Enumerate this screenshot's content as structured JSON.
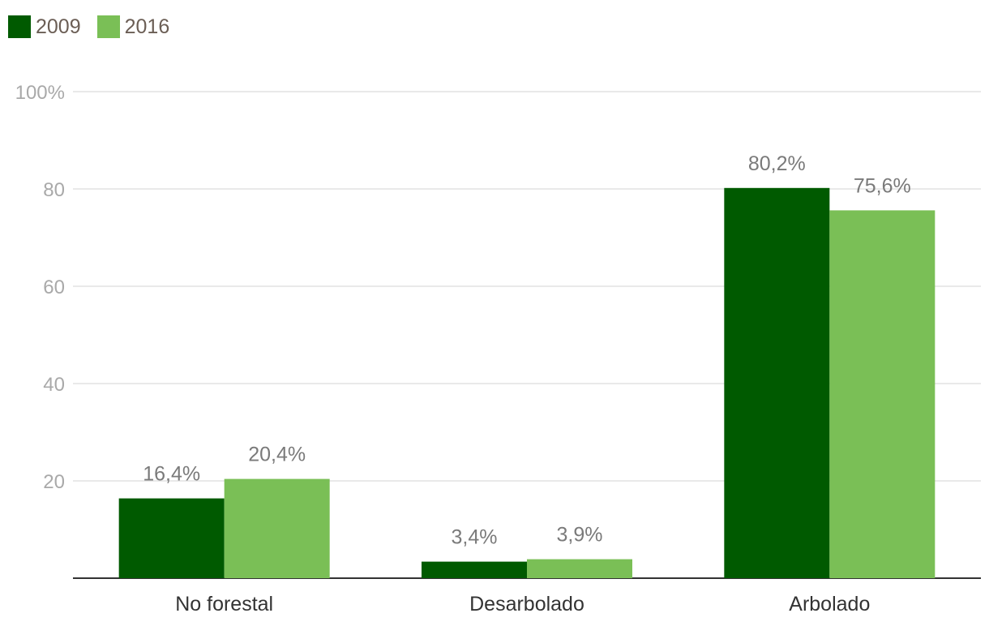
{
  "chart_data": {
    "type": "bar",
    "categories": [
      "No forestal",
      "Desarbolado",
      "Arbolado"
    ],
    "series": [
      {
        "name": "2009",
        "values": [
          16.4,
          3.4,
          80.2
        ],
        "labels": [
          "16,4%",
          "3,4%",
          "80,2%"
        ],
        "color": "#005a00"
      },
      {
        "name": "2016",
        "values": [
          20.4,
          3.9,
          75.6
        ],
        "labels": [
          "20,4%",
          "3,9%",
          "75,6%"
        ],
        "color": "#7abf56"
      }
    ],
    "yticks": [
      {
        "value": 20,
        "label": "20"
      },
      {
        "value": 40,
        "label": "40"
      },
      {
        "value": 60,
        "label": "60"
      },
      {
        "value": 80,
        "label": "80"
      },
      {
        "value": 100,
        "label": "100%"
      }
    ],
    "ylim": [
      0,
      100
    ],
    "grid": true,
    "legend_position": "top-left",
    "xlabel": "",
    "ylabel": ""
  }
}
